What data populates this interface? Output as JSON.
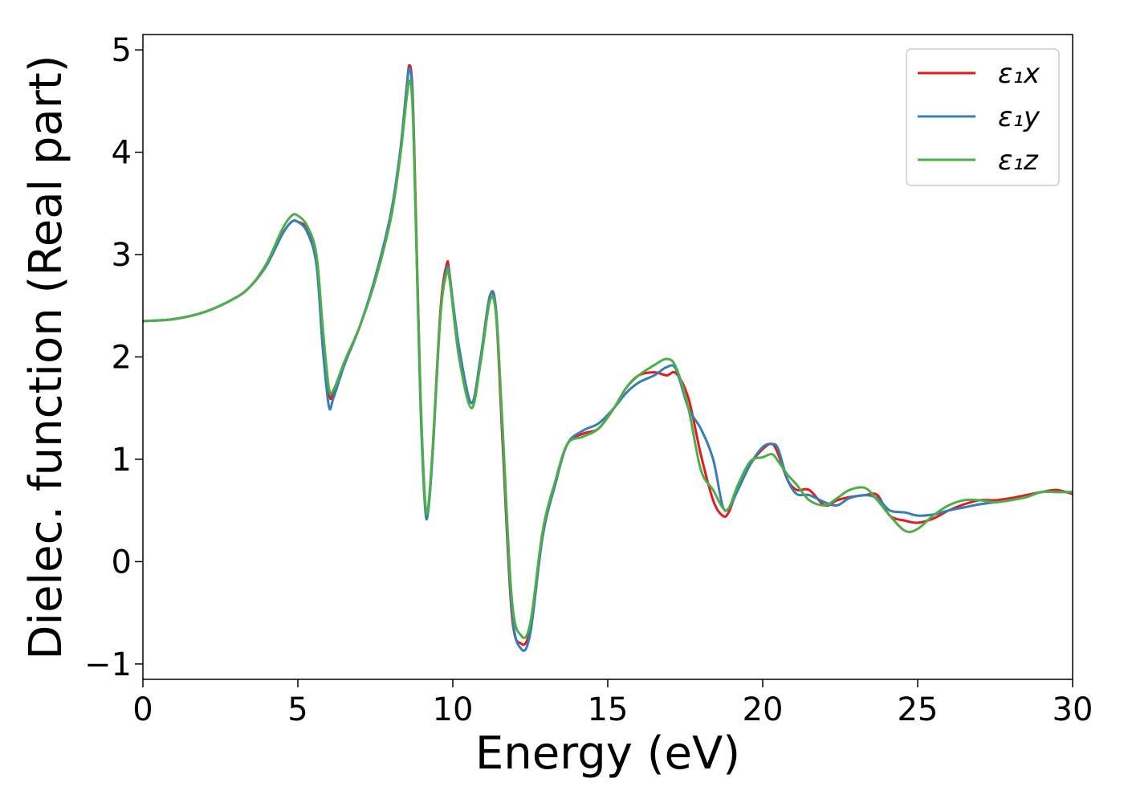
{
  "chart_data": {
    "type": "line",
    "title": "",
    "xlabel": "Energy (eV)",
    "ylabel": "Dielec. function (Real part)",
    "xlim": [
      0,
      30
    ],
    "ylim": [
      -1.15,
      5.15
    ],
    "xticks": [
      0,
      5,
      10,
      15,
      20,
      25,
      30
    ],
    "yticks": [
      -1,
      0,
      1,
      2,
      3,
      4,
      5
    ],
    "xtick_labels": [
      "0",
      "5",
      "10",
      "15",
      "20",
      "25",
      "30"
    ],
    "ytick_labels": [
      "−1",
      "0",
      "1",
      "2",
      "3",
      "4",
      "5"
    ],
    "grid": false,
    "legend_position": "top-right",
    "series": [
      {
        "name": "ε₁x",
        "color": "#e41a1c",
        "x": [
          0,
          1,
          2,
          3,
          3.5,
          4,
          4.5,
          4.8,
          5.0,
          5.3,
          5.6,
          5.8,
          6.0,
          6.15,
          6.5,
          7,
          7.5,
          8.0,
          8.3,
          8.5,
          8.6,
          8.7,
          8.8,
          8.95,
          9.1,
          9.2,
          9.35,
          9.6,
          9.8,
          9.9,
          10.2,
          10.6,
          10.9,
          11.2,
          11.4,
          11.6,
          11.9,
          12.2,
          12.5,
          12.9,
          13.3,
          13.7,
          14.2,
          14.7,
          15.2,
          15.6,
          16.0,
          16.5,
          16.9,
          17.2,
          17.6,
          18.0,
          18.4,
          18.7,
          18.9,
          19.2,
          19.6,
          20.0,
          20.3,
          20.5,
          20.8,
          21.1,
          21.5,
          22.0,
          22.4,
          22.8,
          23.3,
          23.7,
          24.1,
          24.6,
          25.0,
          25.5,
          26.0,
          26.5,
          27.0,
          27.5,
          28.0,
          28.5,
          29.0,
          29.5,
          30.0
        ],
        "y": [
          2.35,
          2.37,
          2.44,
          2.58,
          2.7,
          2.9,
          3.2,
          3.32,
          3.32,
          3.25,
          2.95,
          2.2,
          1.64,
          1.65,
          1.95,
          2.3,
          2.78,
          3.4,
          4.0,
          4.6,
          4.85,
          4.6,
          3.5,
          1.7,
          0.6,
          0.5,
          1.1,
          2.45,
          2.9,
          2.8,
          2.0,
          1.55,
          2.0,
          2.6,
          2.4,
          1.2,
          -0.5,
          -0.8,
          -0.65,
          0.25,
          0.75,
          1.15,
          1.25,
          1.3,
          1.5,
          1.7,
          1.82,
          1.85,
          1.82,
          1.84,
          1.6,
          1.05,
          0.6,
          0.45,
          0.48,
          0.72,
          0.95,
          1.1,
          1.15,
          1.05,
          0.8,
          0.7,
          0.7,
          0.55,
          0.6,
          0.63,
          0.65,
          0.65,
          0.45,
          0.4,
          0.38,
          0.42,
          0.5,
          0.56,
          0.6,
          0.6,
          0.62,
          0.65,
          0.68,
          0.7,
          0.66
        ]
      },
      {
        "name": "ε₁y",
        "color": "#377eb8",
        "x": [
          0,
          1,
          2,
          3,
          3.5,
          4,
          4.5,
          4.8,
          5.0,
          5.3,
          5.6,
          5.8,
          6.0,
          6.15,
          6.5,
          7,
          7.5,
          8.0,
          8.3,
          8.5,
          8.6,
          8.7,
          8.8,
          8.95,
          9.1,
          9.2,
          9.35,
          9.6,
          9.8,
          9.9,
          10.2,
          10.6,
          10.9,
          11.2,
          11.4,
          11.6,
          11.9,
          12.2,
          12.5,
          12.9,
          13.3,
          13.7,
          14.2,
          14.7,
          15.2,
          15.6,
          16.0,
          16.5,
          16.9,
          17.2,
          17.6,
          18.0,
          18.4,
          18.7,
          18.9,
          19.2,
          19.6,
          20.0,
          20.3,
          20.5,
          20.8,
          21.1,
          21.5,
          22.0,
          22.4,
          22.8,
          23.3,
          23.7,
          24.1,
          24.6,
          25.0,
          25.5,
          26.0,
          26.5,
          27.0,
          27.5,
          28.0,
          28.5,
          29.0,
          29.5,
          30.0
        ],
        "y": [
          2.35,
          2.37,
          2.44,
          2.58,
          2.7,
          2.9,
          3.2,
          3.32,
          3.32,
          3.22,
          2.9,
          2.1,
          1.52,
          1.6,
          1.92,
          2.3,
          2.78,
          3.4,
          4.0,
          4.6,
          4.82,
          4.55,
          3.4,
          1.6,
          0.55,
          0.48,
          1.05,
          2.4,
          2.85,
          2.78,
          2.1,
          1.55,
          2.0,
          2.6,
          2.45,
          1.3,
          -0.45,
          -0.85,
          -0.7,
          0.25,
          0.75,
          1.15,
          1.28,
          1.35,
          1.5,
          1.65,
          1.75,
          1.82,
          1.9,
          1.88,
          1.5,
          1.3,
          1.0,
          0.55,
          0.52,
          0.7,
          0.95,
          1.12,
          1.15,
          1.1,
          0.8,
          0.66,
          0.65,
          0.58,
          0.55,
          0.62,
          0.65,
          0.62,
          0.5,
          0.48,
          0.45,
          0.46,
          0.5,
          0.53,
          0.56,
          0.58,
          0.6,
          0.63,
          0.68,
          0.68,
          0.68
        ]
      },
      {
        "name": "ε₁z",
        "color": "#4daf4a",
        "x": [
          0,
          1,
          2,
          3,
          3.5,
          4,
          4.5,
          4.8,
          5.0,
          5.3,
          5.6,
          5.8,
          6.0,
          6.15,
          6.5,
          7,
          7.5,
          8.0,
          8.3,
          8.5,
          8.6,
          8.7,
          8.8,
          8.95,
          9.1,
          9.2,
          9.35,
          9.6,
          9.8,
          9.9,
          10.2,
          10.6,
          10.9,
          11.2,
          11.4,
          11.6,
          11.9,
          12.2,
          12.5,
          12.9,
          13.3,
          13.7,
          14.2,
          14.7,
          15.2,
          15.6,
          16.0,
          16.5,
          16.9,
          17.2,
          17.6,
          18.0,
          18.4,
          18.7,
          18.9,
          19.2,
          19.6,
          20.0,
          20.3,
          20.5,
          20.8,
          21.1,
          21.5,
          22.0,
          22.4,
          22.8,
          23.3,
          23.7,
          24.1,
          24.6,
          25.0,
          25.5,
          26.0,
          26.5,
          27.0,
          27.5,
          28.0,
          28.5,
          29.0,
          29.5,
          30.0
        ],
        "y": [
          2.35,
          2.37,
          2.44,
          2.58,
          2.7,
          2.92,
          3.25,
          3.38,
          3.38,
          3.28,
          3.0,
          2.3,
          1.7,
          1.68,
          1.95,
          2.3,
          2.75,
          3.35,
          3.95,
          4.5,
          4.7,
          4.45,
          3.4,
          1.7,
          0.62,
          0.52,
          1.1,
          2.4,
          2.82,
          2.75,
          2.0,
          1.5,
          1.95,
          2.55,
          2.4,
          1.35,
          -0.35,
          -0.72,
          -0.6,
          0.3,
          0.78,
          1.15,
          1.22,
          1.3,
          1.5,
          1.7,
          1.82,
          1.92,
          1.98,
          1.9,
          1.5,
          0.9,
          0.7,
          0.53,
          0.52,
          0.75,
          0.98,
          1.02,
          1.05,
          0.98,
          0.85,
          0.75,
          0.6,
          0.55,
          0.62,
          0.7,
          0.72,
          0.6,
          0.45,
          0.3,
          0.32,
          0.45,
          0.55,
          0.6,
          0.6,
          0.58,
          0.6,
          0.63,
          0.68,
          0.68,
          0.68
        ]
      }
    ]
  }
}
